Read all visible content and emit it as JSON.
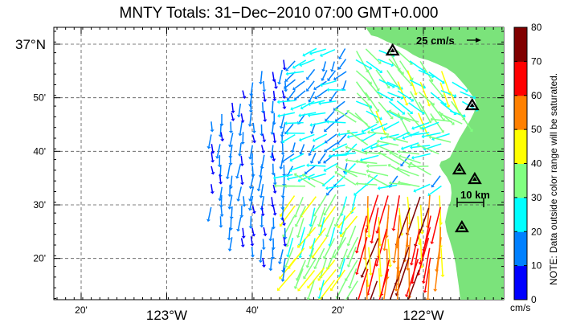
{
  "title": "MNTY Totals: 31−Dec−2010 07:00 GMT+0.000",
  "map": {
    "lon_labels": [
      {
        "text": "20'",
        "lon": -123.3333
      },
      {
        "text": "123°W",
        "lon": -123.0
      },
      {
        "text": "40'",
        "lon": -122.6667
      },
      {
        "text": "20'",
        "lon": -122.3333
      },
      {
        "text": "122°W",
        "lon": -122.0
      }
    ],
    "lat_labels": [
      {
        "text": "37°N",
        "lat": 37.0
      },
      {
        "text": "50'",
        "lat": 36.8333
      },
      {
        "text": "40'",
        "lat": 36.6667
      },
      {
        "text": "30'",
        "lat": 36.5
      },
      {
        "text": "20'",
        "lat": 36.3333
      }
    ],
    "reference_arrow_label": "25 cm/s",
    "scale_bar_label": "10 km",
    "land_color": "#7be37b",
    "grid_style": "dashed",
    "radar_stations": [
      {
        "lon": -122.12,
        "lat": 36.98
      },
      {
        "lon": -121.81,
        "lat": 36.81
      },
      {
        "lon": -121.86,
        "lat": 36.61
      },
      {
        "lon": -121.8,
        "lat": 36.58
      },
      {
        "lon": -121.85,
        "lat": 36.43
      }
    ]
  },
  "colorbar": {
    "ticks": [
      "0",
      "10",
      "20",
      "30",
      "40",
      "50",
      "60",
      "70",
      "80"
    ],
    "units": "cm/s",
    "note": "NOTE: Data outside color range will be saturated.",
    "colors": [
      "#0000ff",
      "#0080ff",
      "#00ffff",
      "#80ff80",
      "#ffff00",
      "#ff8000",
      "#ff0000",
      "#800000"
    ]
  }
}
